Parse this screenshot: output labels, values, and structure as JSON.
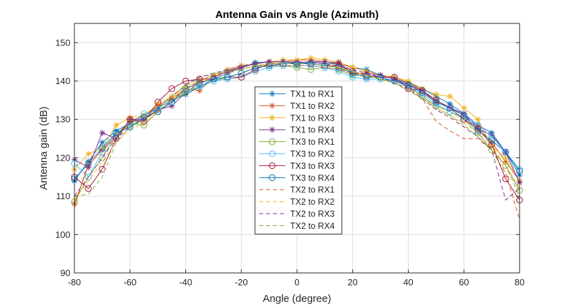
{
  "chart_data": {
    "type": "line",
    "title": "Antenna Gain vs Angle (Azimuth)",
    "xlabel": "Angle (degree)",
    "ylabel": "Antenna gain (dB)",
    "xlim": [
      -80,
      80
    ],
    "ylim": [
      90,
      155
    ],
    "xticks": [
      -80,
      -60,
      -40,
      -20,
      0,
      20,
      40,
      60,
      80
    ],
    "yticks": [
      90,
      100,
      110,
      120,
      130,
      140,
      150
    ],
    "grid": true,
    "legend_position": "center",
    "x": [
      -80,
      -75,
      -70,
      -65,
      -60,
      -55,
      -50,
      -45,
      -40,
      -35,
      -30,
      -25,
      -20,
      -15,
      -10,
      -5,
      0,
      5,
      10,
      15,
      20,
      25,
      30,
      35,
      40,
      45,
      50,
      55,
      60,
      65,
      70,
      75,
      80
    ],
    "series": [
      {
        "name": "TX1 to RX1",
        "color": "#0072BD",
        "marker": "star",
        "dash": false,
        "values": [
          114,
          119,
          124,
          127,
          129,
          131,
          133,
          135,
          136.5,
          138.5,
          140.5,
          142,
          143.5,
          144.8,
          145,
          145,
          144.5,
          144.8,
          144.5,
          144.5,
          143.5,
          143,
          141.5,
          140.5,
          139.5,
          138,
          136,
          134,
          131.5,
          128.5,
          126.5,
          121.5,
          115.5
        ]
      },
      {
        "name": "TX1 to RX2",
        "color": "#D95319",
        "marker": "star",
        "dash": false,
        "values": [
          108,
          118,
          122,
          126,
          129.5,
          131,
          133.5,
          135.5,
          138,
          137.5,
          141,
          142.5,
          144,
          144.5,
          145,
          145,
          145.5,
          145.5,
          145,
          144.5,
          143.5,
          142.5,
          141.5,
          141,
          139.5,
          137.5,
          135,
          133,
          131,
          128,
          124,
          119,
          114
        ]
      },
      {
        "name": "TX1 to RX3",
        "color": "#EDB120",
        "marker": "star",
        "dash": false,
        "values": [
          117,
          121,
          122.5,
          128.5,
          130.5,
          131,
          134,
          136,
          138.5,
          140,
          141.5,
          143,
          144,
          144.5,
          145,
          145.5,
          145.5,
          146,
          145.5,
          145,
          143.5,
          142.5,
          141.5,
          141,
          140,
          138,
          136.5,
          136,
          133,
          130,
          123,
          120,
          114
        ]
      },
      {
        "name": "TX1 to RX4",
        "color": "#7E2F8E",
        "marker": "star",
        "dash": false,
        "values": [
          119.5,
          117.5,
          126.5,
          125,
          130,
          130,
          132.5,
          133.5,
          137,
          139.5,
          141,
          142.5,
          143.5,
          144.5,
          145,
          145,
          144.8,
          145,
          145,
          144.8,
          142,
          142,
          141.5,
          140.5,
          139,
          137.5,
          134.5,
          133,
          131.5,
          127.5,
          126,
          121.5,
          113.5
        ]
      },
      {
        "name": "TX3 to RX1",
        "color": "#77AC30",
        "marker": "circle",
        "dash": false,
        "values": [
          108.5,
          115,
          120,
          126,
          129,
          128.5,
          132,
          134.5,
          137,
          138.5,
          140,
          141,
          142,
          143.5,
          144,
          144,
          143.5,
          143,
          143.5,
          143,
          141.5,
          141.5,
          140.5,
          140,
          138.5,
          136,
          133.5,
          132,
          130,
          126.5,
          122,
          118,
          111.5
        ]
      },
      {
        "name": "TX3 to RX2",
        "color": "#4DBEEE",
        "marker": "circle",
        "dash": false,
        "values": [
          118.5,
          115,
          121.5,
          126,
          128.5,
          131.5,
          132.5,
          134.5,
          137.5,
          138.5,
          140,
          140.5,
          141,
          142.5,
          143.5,
          144,
          144,
          144,
          143.5,
          142.5,
          141,
          140.5,
          140.5,
          140,
          138.5,
          136.5,
          134,
          132,
          130.5,
          128.5,
          125.5,
          121.5,
          117
        ]
      },
      {
        "name": "TX3 to RX3",
        "color": "#A2142F",
        "marker": "circle",
        "dash": false,
        "values": [
          115,
          112,
          117,
          125,
          130,
          129.5,
          134.5,
          138,
          140,
          140.5,
          140.5,
          141,
          141,
          143,
          144.5,
          144.5,
          144.5,
          144.5,
          144,
          144,
          142.5,
          141.5,
          141,
          141,
          138,
          137.5,
          135,
          133,
          130,
          127.5,
          123.5,
          114.5,
          109
        ]
      },
      {
        "name": "TX3 to RX4",
        "color": "#0072BD",
        "marker": "circle",
        "dash": false,
        "values": [
          114.5,
          118.5,
          122.5,
          126.5,
          128,
          130.5,
          132,
          134.5,
          138,
          139.5,
          140.5,
          141,
          142,
          143.5,
          144,
          144.5,
          144.5,
          144.5,
          144,
          143.5,
          142,
          141,
          141,
          140,
          139,
          137,
          134.5,
          133,
          131,
          127,
          124.5,
          121.5,
          116.5
        ]
      },
      {
        "name": "TX2 to RX1",
        "color": "#D95319",
        "marker": "none",
        "dash": true,
        "values": [
          107,
          119,
          122,
          125,
          129,
          130,
          132,
          135,
          138,
          140,
          141.5,
          142.5,
          143,
          144,
          144,
          144,
          144,
          144,
          143.5,
          143,
          142,
          141.5,
          140.5,
          139.5,
          137.5,
          135.5,
          129.5,
          127,
          125,
          125,
          122,
          116,
          104
        ]
      },
      {
        "name": "TX2 to RX2",
        "color": "#EDB120",
        "marker": "none",
        "dash": true,
        "values": [
          109,
          114,
          119,
          124,
          127.5,
          129,
          132,
          135,
          137.5,
          139.5,
          141,
          142,
          143,
          144,
          144.5,
          145,
          145,
          145,
          144.5,
          143.5,
          142.5,
          141.5,
          140.5,
          139.5,
          138,
          136,
          133,
          131,
          129,
          126.5,
          123,
          118,
          112
        ]
      },
      {
        "name": "TX2 to RX3",
        "color": "#7E2F8E",
        "marker": "none",
        "dash": true,
        "values": [
          110,
          115,
          120,
          125,
          128,
          130,
          133,
          136,
          139,
          141,
          142,
          143,
          144,
          144.5,
          145,
          145,
          145,
          145,
          144.5,
          144,
          143,
          142,
          141,
          139.5,
          138,
          135.5,
          132.5,
          130.5,
          128,
          125.5,
          122,
          109,
          112
        ]
      },
      {
        "name": "TX2 to RX4",
        "color": "#77AC30",
        "marker": "none",
        "dash": true,
        "values": [
          110,
          110.5,
          115,
          124,
          128,
          130,
          133,
          136,
          139,
          140.5,
          142,
          142.5,
          143,
          144,
          144.5,
          144.5,
          144.5,
          144.5,
          144,
          143.5,
          142.5,
          141.5,
          140.5,
          139.5,
          137.5,
          135.5,
          133,
          131,
          128.5,
          125.5,
          122,
          118,
          110
        ]
      }
    ]
  }
}
